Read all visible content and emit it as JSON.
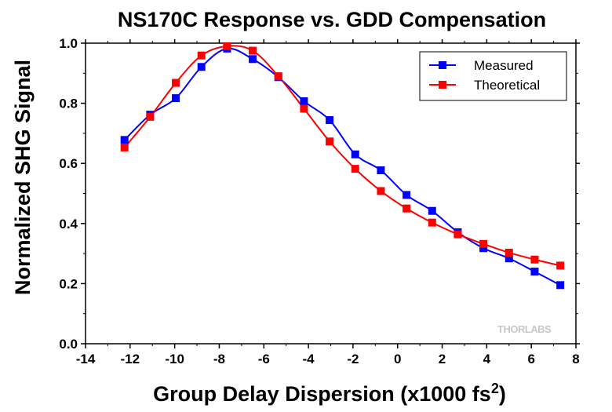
{
  "chart_data": {
    "type": "line",
    "title": "NS170C Response vs. GDD Compensation",
    "xlabel": "Group Delay Dispersion (x1000 fs",
    "xlabel_sup": "2",
    "xlabel_end": ")",
    "ylabel": "Normalized SHG Signal",
    "xlim": [
      -14,
      8
    ],
    "ylim": [
      0.0,
      1.0
    ],
    "xticks": [
      -14,
      -12,
      -10,
      -8,
      -6,
      -4,
      -2,
      0,
      2,
      4,
      6,
      8
    ],
    "yticks": [
      0.0,
      0.2,
      0.4,
      0.6,
      0.8,
      1.0
    ],
    "ytick_labels": [
      "0.0",
      "0.2",
      "0.4",
      "0.6",
      "0.8",
      "1.0"
    ],
    "grid": false,
    "legend_position": "top-right",
    "series": [
      {
        "name": "Measured",
        "color": "#0000ff",
        "x": [
          -12.25,
          -11.1,
          -9.95,
          -8.8,
          -7.65,
          -6.5,
          -5.35,
          -4.2,
          -3.05,
          -1.9,
          -0.75,
          0.4,
          1.55,
          2.7,
          3.85,
          5.0,
          6.15,
          7.3
        ],
        "y": [
          0.678,
          0.762,
          0.817,
          0.921,
          0.982,
          0.947,
          0.887,
          0.807,
          0.744,
          0.63,
          0.577,
          0.495,
          0.442,
          0.371,
          0.318,
          0.284,
          0.24,
          0.195
        ]
      },
      {
        "name": "Theoretical",
        "color": "#ff0000",
        "x": [
          -12.25,
          -11.1,
          -9.95,
          -8.8,
          -7.65,
          -6.5,
          -5.35,
          -4.2,
          -3.05,
          -1.9,
          -0.75,
          0.4,
          1.55,
          2.7,
          3.85,
          5.0,
          6.15,
          7.3
        ],
        "y": [
          0.653,
          0.755,
          0.868,
          0.959,
          0.99,
          0.975,
          0.89,
          0.782,
          0.673,
          0.582,
          0.508,
          0.45,
          0.403,
          0.364,
          0.332,
          0.303,
          0.28,
          0.26
        ]
      }
    ]
  },
  "logo": "THORLABS"
}
